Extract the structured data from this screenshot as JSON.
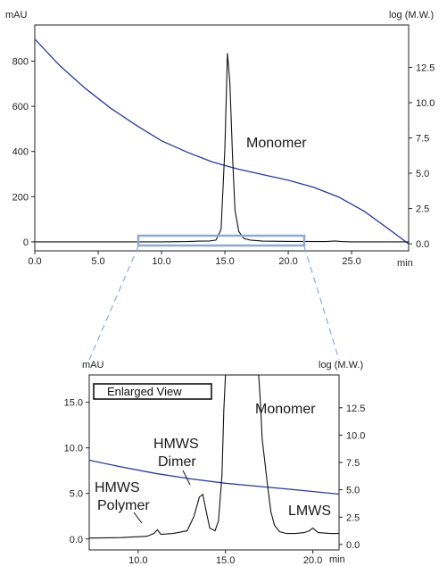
{
  "chart_data": [
    {
      "type": "line",
      "x_unit": "min",
      "y_left_unit": "mAU",
      "y_right_unit": "log (M.W.)",
      "xlim": [
        0,
        29.5
      ],
      "ylim_left": [
        -40,
        960
      ],
      "ylim_right": [
        -0.5,
        15.5
      ],
      "xticks": [
        0,
        5,
        10,
        15,
        20,
        25
      ],
      "xtick_labels": [
        "0.0",
        "5.0",
        "10.0",
        "15.0",
        "20.0",
        "25.0"
      ],
      "yticks_left": [
        0,
        200,
        400,
        600,
        800
      ],
      "ytick_labels_left": [
        "0",
        "200",
        "400",
        "600",
        "800"
      ],
      "yticks_right": [
        0,
        2.5,
        5,
        7.5,
        10,
        12.5
      ],
      "ytick_labels_right": [
        "0.0",
        "2.5",
        "5.0",
        "7.5",
        "10.0",
        "12.5"
      ],
      "annotations": [
        {
          "text": "Monomer",
          "x": 16.5,
          "y": 450
        }
      ],
      "series": [
        {
          "axis": "left",
          "color": "#111111",
          "x": [
            0,
            5,
            10,
            12,
            13,
            13.8,
            14.3,
            14.7,
            15.0,
            15.2,
            15.4,
            15.6,
            15.8,
            16.1,
            16.5,
            17.0,
            18,
            20,
            23,
            23.7,
            24.2,
            25,
            29.5
          ],
          "y": [
            0,
            0,
            0,
            1,
            3,
            4,
            8,
            55,
            420,
            835,
            700,
            380,
            140,
            45,
            15,
            8,
            3,
            2,
            1,
            4,
            1,
            0,
            0
          ]
        },
        {
          "axis": "right",
          "color": "#2a3a94",
          "x": [
            0,
            2,
            4,
            6,
            8,
            10,
            12,
            14,
            16,
            18,
            20,
            22,
            24,
            26,
            28,
            29.5
          ],
          "y": [
            14.5,
            12.6,
            11.0,
            9.6,
            8.4,
            7.3,
            6.5,
            5.8,
            5.3,
            4.9,
            4.5,
            4.0,
            3.3,
            2.3,
            1.0,
            0
          ]
        }
      ]
    },
    {
      "type": "line",
      "x_unit": "min",
      "y_left_unit": "mAU",
      "y_right_unit": "log (M.W.)",
      "xlim": [
        7.2,
        21.5
      ],
      "ylim_left": [
        -1.2,
        18.0
      ],
      "ylim_right": [
        -0.5,
        15.5
      ],
      "xticks": [
        10,
        15,
        20
      ],
      "xtick_labels": [
        "10.0",
        "15.0",
        "20.0"
      ],
      "yticks_left": [
        0,
        5,
        10,
        15
      ],
      "ytick_labels_left": [
        "0.0",
        "5.0",
        "10.0",
        "15.0"
      ],
      "yticks_right": [
        0,
        2.5,
        5,
        7.5,
        10,
        12.5
      ],
      "ytick_labels_right": [
        "0.0",
        "2.5",
        "5.0",
        "7.5",
        "10.0",
        "12.5"
      ],
      "legend_box": "Enlarged View",
      "annotations": [
        {
          "text": "Monomer"
        },
        {
          "text": "HMWS"
        },
        {
          "text": "Dimer"
        },
        {
          "text": "HMWS"
        },
        {
          "text": "Polymer"
        },
        {
          "text": "LMWS"
        }
      ],
      "series": [
        {
          "axis": "left",
          "color": "#111111",
          "x": [
            7.2,
            9,
            10.5,
            10.9,
            11.1,
            11.3,
            12,
            12.8,
            13.2,
            13.5,
            13.7,
            13.9,
            14.1,
            14.4,
            14.6,
            14.8,
            14.9,
            15.0,
            16.9,
            17.0,
            17.1,
            17.25,
            17.4,
            17.6,
            17.8,
            18.1,
            18.5,
            19.0,
            19.5,
            19.8,
            20.0,
            20.3,
            21.0,
            21.5
          ],
          "y": [
            0.1,
            0.15,
            0.3,
            0.6,
            1.0,
            0.5,
            0.6,
            0.9,
            2.5,
            4.6,
            4.9,
            3.0,
            1.2,
            0.9,
            2.0,
            7.0,
            14.0,
            18.0,
            18.0,
            15.0,
            11.0,
            8.5,
            6.0,
            3.0,
            1.5,
            0.8,
            0.6,
            0.6,
            0.7,
            0.9,
            1.2,
            0.7,
            0.6,
            0.6
          ]
        },
        {
          "axis": "right",
          "color": "#2a3a94",
          "x": [
            7.2,
            9,
            11,
            13,
            15,
            17,
            19,
            21.5
          ],
          "y": [
            7.7,
            7.1,
            6.5,
            6.0,
            5.6,
            5.3,
            5.0,
            4.6
          ]
        }
      ]
    }
  ],
  "connector_color": "#8fa9d6"
}
